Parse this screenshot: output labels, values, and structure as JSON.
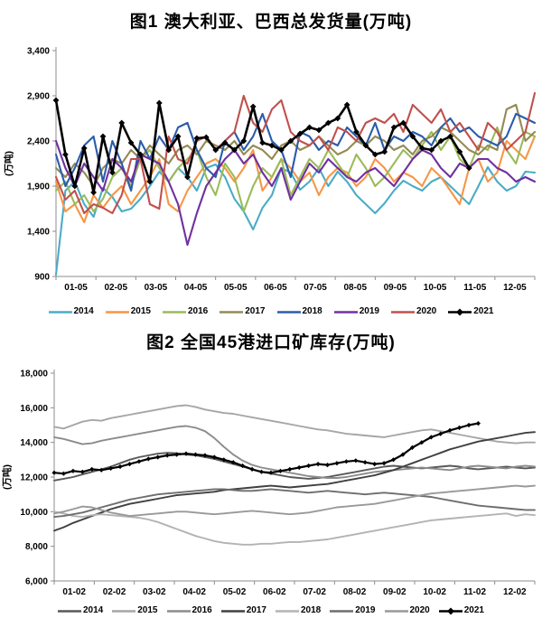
{
  "page": {
    "background": "#ffffff"
  },
  "chart_data": [
    {
      "id": "shipments",
      "type": "line",
      "title": "图1 澳大利亚、巴西总发货量(万吨)",
      "ylabel": "(万吨)",
      "ylim": [
        900,
        3400
      ],
      "ytick_labels": [
        "900",
        "1,400",
        "1,900",
        "2,400",
        "2,900",
        "3,400"
      ],
      "xtick_labels": [
        "01-05",
        "02-05",
        "03-05",
        "04-05",
        "05-05",
        "06-05",
        "07-05",
        "08-05",
        "09-05",
        "10-05",
        "11-05",
        "12-05"
      ],
      "grid": false,
      "legend_position": "bottom",
      "slots": 52,
      "series": [
        {
          "name": "2014",
          "color": "#4BACC6",
          "marker": false,
          "values": [
            920,
            1850,
            1950,
            1700,
            1560,
            1880,
            1780,
            1620,
            1650,
            1760,
            1900,
            2060,
            1950,
            2100,
            2000,
            1850,
            2100,
            2140,
            2000,
            1760,
            1620,
            1420,
            1660,
            1800,
            2100,
            2050,
            1860,
            1950,
            2100,
            1900,
            2060,
            1950,
            1800,
            1700,
            1600,
            1710,
            1850,
            1960,
            1900,
            1850,
            1950,
            2000,
            1900,
            1800,
            1700,
            1900,
            2110,
            1950,
            1850,
            1900,
            2060,
            2050
          ]
        },
        {
          "name": "2015",
          "color": "#F79646",
          "marker": false,
          "values": [
            1950,
            1620,
            1700,
            1500,
            1800,
            1660,
            1800,
            1900,
            1700,
            1850,
            2000,
            2200,
            1700,
            1620,
            1850,
            2000,
            2150,
            2200,
            2100,
            1950,
            2100,
            2300,
            1850,
            2000,
            2200,
            2100,
            1950,
            2050,
            1800,
            2000,
            2100,
            2050,
            1900,
            2000,
            2200,
            2100,
            1950,
            2050,
            2000,
            1900,
            2100,
            2000,
            1850,
            1700,
            2100,
            2200,
            1950,
            2050,
            2400,
            2300,
            2200,
            2450
          ]
        },
        {
          "name": "2016",
          "color": "#9BBB59",
          "marker": false,
          "values": [
            1850,
            1950,
            1700,
            1800,
            1620,
            1760,
            2000,
            2100,
            1900,
            2200,
            2300,
            2100,
            1950,
            2100,
            2200,
            2300,
            2000,
            1800,
            2150,
            2000,
            1620,
            1900,
            2100,
            2000,
            2200,
            1800,
            2000,
            2200,
            2100,
            2300,
            2150,
            2000,
            2250,
            2100,
            1900,
            2000,
            2150,
            2300,
            2200,
            2350,
            2500,
            2300,
            2450,
            2200,
            2100,
            2350,
            2300,
            2550,
            2300,
            2150,
            2500,
            2450
          ]
        },
        {
          "name": "2017",
          "color": "#948A54",
          "marker": false,
          "values": [
            2100,
            2000,
            2150,
            2050,
            1900,
            2100,
            2200,
            2150,
            2300,
            2200,
            2350,
            2250,
            2150,
            2300,
            2350,
            2250,
            2400,
            2350,
            2300,
            2400,
            2250,
            2350,
            2300,
            2200,
            2350,
            2400,
            2300,
            2350,
            2450,
            2350,
            2250,
            2300,
            2400,
            2350,
            2450,
            2400,
            2300,
            2350,
            2250,
            2400,
            2450,
            2550,
            2500,
            2400,
            2300,
            2250,
            2350,
            2300,
            2750,
            2800,
            2400,
            2500
          ]
        },
        {
          "name": "2018",
          "color": "#2A5CAA",
          "marker": false,
          "values": [
            2250,
            1900,
            2100,
            2350,
            2450,
            1950,
            2400,
            2150,
            1850,
            2400,
            2200,
            2450,
            2300,
            2550,
            2600,
            2300,
            2100,
            2000,
            2400,
            2500,
            2300,
            2450,
            2700,
            2400,
            2300,
            2000,
            2500,
            2450,
            2300,
            2400,
            2350,
            2550,
            2450,
            2350,
            2600,
            2300,
            2450,
            2400,
            2500,
            2450,
            2350,
            2550,
            2650,
            2500,
            2550,
            2450,
            2400,
            2350,
            2450,
            2700,
            2650,
            2600
          ]
        },
        {
          "name": "2019",
          "color": "#7030A0",
          "marker": false,
          "values": [
            2400,
            2100,
            1900,
            2150,
            2000,
            1850,
            2200,
            2100,
            1950,
            2250,
            2200,
            2150,
            1950,
            1700,
            1250,
            1600,
            1900,
            2050,
            2200,
            2300,
            2150,
            2250,
            2050,
            1900,
            2100,
            1750,
            1950,
            2150,
            2050,
            2200,
            2100,
            2000,
            1950,
            2050,
            2100,
            2000,
            1900,
            2050,
            2200,
            2300,
            2250,
            2100,
            2000,
            2150,
            2100,
            2200,
            2200,
            2100,
            2050,
            1950,
            2000,
            1950
          ]
        },
        {
          "name": "2020",
          "color": "#C0504D",
          "marker": false,
          "values": [
            2000,
            1750,
            1850,
            1600,
            1700,
            1660,
            1600,
            1800,
            2200,
            2200,
            1700,
            1650,
            2450,
            2200,
            2150,
            2400,
            2450,
            2300,
            2400,
            2500,
            2900,
            2600,
            2500,
            2750,
            2850,
            2500,
            2400,
            2350,
            2450,
            2300,
            2550,
            2500,
            2400,
            2600,
            2650,
            2600,
            2700,
            2500,
            2800,
            2700,
            2600,
            2750,
            2500,
            2600,
            2450,
            2300,
            2600,
            2500,
            2300,
            2400,
            2500,
            2930
          ]
        },
        {
          "name": "2021",
          "color": "#000000",
          "marker": true,
          "values": [
            2850,
            2250,
            1900,
            2320,
            1830,
            2450,
            2050,
            2600,
            2380,
            2250,
            1950,
            2820,
            2300,
            2450,
            2000,
            2430,
            2440,
            2300,
            2380,
            2300,
            2400,
            2780,
            2380,
            2350,
            2300,
            2400,
            2480,
            2550,
            2520,
            2600,
            2650,
            2800,
            2500,
            2350,
            2250,
            2280,
            2550,
            2600,
            2450,
            2320,
            2300,
            2400,
            2450,
            2280,
            2100
          ]
        }
      ]
    },
    {
      "id": "port-inventory",
      "type": "line",
      "title": "图2 全国45港进口矿库存(万吨)",
      "ylabel": "(万吨)",
      "ylim": [
        6000,
        18000
      ],
      "ytick_labels": [
        "6,000",
        "8,000",
        "10,000",
        "12,000",
        "14,000",
        "16,000",
        "18,000"
      ],
      "xtick_labels": [
        "01-02",
        "02-02",
        "03-02",
        "04-02",
        "05-02",
        "06-02",
        "07-02",
        "08-02",
        "09-02",
        "10-02",
        "11-02",
        "12-02"
      ],
      "grid": false,
      "legend_position": "bottom",
      "slots": 52,
      "series": [
        {
          "name": "2014",
          "color": "#595959",
          "marker": false,
          "values": [
            11800,
            11900,
            12000,
            12150,
            12300,
            12450,
            12600,
            12800,
            13000,
            13150,
            13250,
            13350,
            13400,
            13380,
            13300,
            13250,
            13150,
            13050,
            12900,
            12750,
            12600,
            12450,
            12300,
            12200,
            12100,
            12000,
            11950,
            11900,
            11950,
            12000,
            12100,
            12200,
            12300,
            12400,
            12500,
            12600,
            12650,
            12600,
            12550,
            12500,
            12550,
            12600,
            12650,
            12600,
            12500,
            12450,
            12500,
            12550,
            12600,
            12550,
            12500,
            12550
          ]
        },
        {
          "name": "2015",
          "color": "#A6A6A6",
          "marker": false,
          "values": [
            14900,
            14800,
            15000,
            15200,
            15300,
            15250,
            15400,
            15500,
            15600,
            15700,
            15800,
            15900,
            16000,
            16100,
            16150,
            16050,
            15900,
            15800,
            15700,
            15650,
            15550,
            15450,
            15350,
            15250,
            15150,
            15050,
            14950,
            14850,
            14750,
            14700,
            14600,
            14500,
            14450,
            14400,
            14350,
            14300,
            14400,
            14500,
            14600,
            14700,
            14750,
            14650,
            14550,
            14450,
            14350,
            14250,
            14150,
            14050,
            14000,
            13950,
            14000,
            14000
          ]
        },
        {
          "name": "2016",
          "color": "#8C8C8C",
          "marker": false,
          "values": [
            14300,
            14200,
            14050,
            13900,
            13950,
            14100,
            14200,
            14300,
            14400,
            14500,
            14600,
            14700,
            14800,
            14900,
            14950,
            14850,
            14650,
            14250,
            13750,
            13300,
            12950,
            12700,
            12550,
            12450,
            12350,
            12250,
            12150,
            12050,
            12000,
            11950,
            11950,
            12000,
            12100,
            12200,
            12300,
            12350,
            12400,
            12450,
            12500,
            12550,
            12500,
            12450,
            12400,
            12500,
            12600,
            12650,
            12600,
            12550,
            12500,
            12600,
            12650,
            12600
          ]
        },
        {
          "name": "2017",
          "color": "#404040",
          "marker": false,
          "values": [
            8900,
            9100,
            9350,
            9550,
            9750,
            9950,
            10150,
            10300,
            10450,
            10550,
            10650,
            10750,
            10850,
            10950,
            11000,
            11050,
            11100,
            11150,
            11250,
            11300,
            11350,
            11400,
            11450,
            11500,
            11450,
            11400,
            11450,
            11500,
            11550,
            11600,
            11700,
            11800,
            11900,
            12000,
            12100,
            12250,
            12400,
            12600,
            12800,
            13000,
            13200,
            13400,
            13600,
            13750,
            13900,
            14050,
            14150,
            14250,
            14350,
            14450,
            14550,
            14600
          ]
        },
        {
          "name": "2018",
          "color": "#B3B3B3",
          "marker": false,
          "values": [
            10000,
            9900,
            9750,
            9700,
            9800,
            9850,
            9800,
            9750,
            9700,
            9650,
            9550,
            9400,
            9200,
            9000,
            8800,
            8600,
            8450,
            8300,
            8200,
            8150,
            8100,
            8100,
            8150,
            8150,
            8200,
            8250,
            8250,
            8300,
            8350,
            8400,
            8500,
            8600,
            8700,
            8800,
            8900,
            9000,
            9100,
            9200,
            9300,
            9400,
            9500,
            9550,
            9600,
            9650,
            9700,
            9750,
            9800,
            9850,
            9900,
            9750,
            9850,
            9800
          ]
        },
        {
          "name": "2019",
          "color": "#6E6E6E",
          "marker": false,
          "values": [
            9700,
            9750,
            9850,
            9950,
            10100,
            10250,
            10400,
            10550,
            10700,
            10800,
            10900,
            11000,
            11050,
            11100,
            11150,
            11200,
            11250,
            11300,
            11300,
            11250,
            11200,
            11200,
            11250,
            11300,
            11250,
            11200,
            11150,
            11100,
            11150,
            11200,
            11150,
            11100,
            11050,
            11000,
            11050,
            11100,
            11050,
            11000,
            10950,
            10900,
            10850,
            10750,
            10650,
            10550,
            10450,
            10350,
            10300,
            10250,
            10200,
            10150,
            10100,
            10100
          ]
        },
        {
          "name": "2020",
          "color": "#999999",
          "marker": false,
          "values": [
            9900,
            10000,
            10150,
            10300,
            10250,
            10100,
            9950,
            9850,
            9750,
            9800,
            9850,
            9900,
            9950,
            10000,
            10000,
            9950,
            9900,
            9850,
            9900,
            9950,
            10000,
            10050,
            10000,
            9950,
            9900,
            9850,
            9900,
            9950,
            10050,
            10150,
            10250,
            10300,
            10350,
            10400,
            10450,
            10550,
            10650,
            10750,
            10850,
            10950,
            11050,
            11100,
            11150,
            11200,
            11250,
            11300,
            11350,
            11400,
            11450,
            11500,
            11450,
            11500
          ]
        },
        {
          "name": "2021",
          "color": "#000000",
          "marker": true,
          "values": [
            12250,
            12200,
            12350,
            12300,
            12450,
            12400,
            12500,
            12600,
            12750,
            12900,
            13050,
            13150,
            13250,
            13300,
            13350,
            13300,
            13250,
            13150,
            13000,
            12850,
            12650,
            12450,
            12300,
            12250,
            12350,
            12450,
            12550,
            12650,
            12750,
            12700,
            12800,
            12900,
            12950,
            12850,
            12750,
            12800,
            13000,
            13300,
            13700,
            14000,
            14300,
            14500,
            14700,
            14850,
            15000,
            15100
          ]
        }
      ]
    }
  ]
}
